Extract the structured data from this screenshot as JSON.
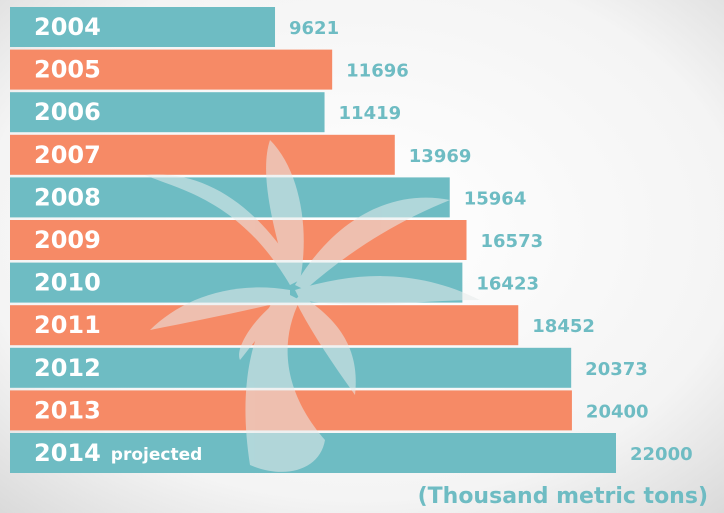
{
  "chart_data": {
    "type": "bar",
    "orientation": "horizontal",
    "categories": [
      "2004",
      "2005",
      "2006",
      "2007",
      "2008",
      "2009",
      "2010",
      "2011",
      "2012",
      "2013",
      "2014"
    ],
    "values": [
      9621,
      11696,
      11419,
      13969,
      15964,
      16573,
      16423,
      18452,
      20373,
      20400,
      22000
    ],
    "colors": [
      "#6ebcc3",
      "#f68a66"
    ],
    "label_color": "#6ebcc3",
    "annotation": "projected",
    "unit_label": "(Thousand metric tons)"
  }
}
